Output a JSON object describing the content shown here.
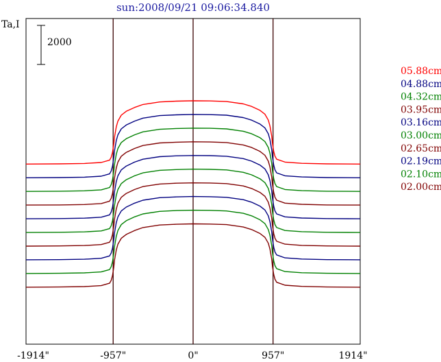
{
  "chart_data": {
    "type": "line",
    "title": "sun:2008/09/21 09:06:34.840",
    "ylabel": "Ta,I",
    "scale_bar_label": "2000",
    "scale_bar_value": 2000,
    "xlim": [
      -2000,
      2000
    ],
    "x_ticks": [
      {
        "value": -1914,
        "label": "-1914\""
      },
      {
        "value": -957,
        "label": "-957\""
      },
      {
        "value": 0,
        "label": "0\""
      },
      {
        "value": 957,
        "label": "957\""
      },
      {
        "value": 1914,
        "label": "1914\""
      }
    ],
    "vertical_lines": [
      -957,
      0,
      957
    ],
    "profile_x": [
      -2000,
      -1600,
      -1300,
      -1100,
      -1000,
      -980,
      -965,
      -950,
      -940,
      -920,
      -900,
      -860,
      -800,
      -700,
      -600,
      -400,
      -200,
      0,
      200,
      400,
      600,
      700,
      800,
      860,
      900,
      920,
      940,
      950,
      965,
      980,
      1000,
      1100,
      1300,
      1600,
      2000
    ],
    "series": [
      {
        "name": "05.88cm",
        "color": "#ff0000",
        "values": [
          2200,
          2210,
          2230,
          2280,
          2400,
          2550,
          2800,
          3200,
          3600,
          4100,
          4400,
          4700,
          4900,
          5100,
          5250,
          5380,
          5420,
          5440,
          5430,
          5400,
          5280,
          5150,
          4950,
          4750,
          4450,
          4150,
          3650,
          3250,
          2850,
          2600,
          2450,
          2300,
          2240,
          2210,
          2200
        ]
      },
      {
        "name": "04.88cm",
        "color": "#000080",
        "values": [
          1500,
          1510,
          1530,
          1580,
          1700,
          1850,
          2100,
          2500,
          2900,
          3400,
          3700,
          4000,
          4200,
          4400,
          4550,
          4680,
          4720,
          4740,
          4730,
          4700,
          4580,
          4450,
          4250,
          4050,
          3750,
          3450,
          2950,
          2550,
          2150,
          1900,
          1750,
          1600,
          1540,
          1510,
          1500
        ]
      },
      {
        "name": "04.32cm",
        "color": "#008000",
        "values": [
          800,
          810,
          830,
          880,
          1000,
          1150,
          1400,
          1800,
          2200,
          2700,
          3000,
          3300,
          3500,
          3700,
          3850,
          3980,
          4020,
          4040,
          4030,
          4000,
          3880,
          3750,
          3550,
          3350,
          3050,
          2750,
          2250,
          1850,
          1450,
          1200,
          1050,
          900,
          840,
          810,
          800
        ]
      },
      {
        "name": "03.95cm",
        "color": "#800000",
        "values": [
          100,
          110,
          130,
          180,
          300,
          450,
          700,
          1100,
          1500,
          2000,
          2300,
          2600,
          2800,
          3000,
          3150,
          3280,
          3320,
          3340,
          3330,
          3300,
          3180,
          3050,
          2850,
          2650,
          2350,
          2050,
          1550,
          1150,
          750,
          500,
          350,
          200,
          140,
          110,
          100
        ]
      },
      {
        "name": "03.16cm",
        "color": "#000080",
        "values": [
          -600,
          -590,
          -570,
          -520,
          -400,
          -250,
          0,
          400,
          800,
          1300,
          1600,
          1900,
          2100,
          2300,
          2450,
          2580,
          2620,
          2640,
          2630,
          2600,
          2480,
          2350,
          2150,
          1950,
          1650,
          1350,
          850,
          450,
          50,
          -200,
          -350,
          -500,
          -560,
          -590,
          -600
        ]
      },
      {
        "name": "03.00cm",
        "color": "#008000",
        "values": [
          -1300,
          -1290,
          -1270,
          -1220,
          -1100,
          -950,
          -700,
          -300,
          100,
          600,
          900,
          1200,
          1400,
          1600,
          1750,
          1880,
          1920,
          1940,
          1930,
          1900,
          1780,
          1650,
          1450,
          1250,
          950,
          650,
          150,
          -250,
          -650,
          -900,
          -1050,
          -1200,
          -1260,
          -1290,
          -1300
        ]
      },
      {
        "name": "02.65cm",
        "color": "#800000",
        "values": [
          -2000,
          -1990,
          -1970,
          -1920,
          -1800,
          -1650,
          -1400,
          -1000,
          -600,
          -100,
          200,
          500,
          700,
          900,
          1050,
          1180,
          1220,
          1240,
          1230,
          1200,
          1080,
          950,
          750,
          550,
          250,
          -50,
          -550,
          -950,
          -1350,
          -1600,
          -1750,
          -1900,
          -1960,
          -1990,
          -2000
        ]
      },
      {
        "name": "02.19cm",
        "color": "#000080",
        "values": [
          -2700,
          -2690,
          -2670,
          -2620,
          -2500,
          -2350,
          -2100,
          -1700,
          -1300,
          -800,
          -500,
          -200,
          0,
          200,
          350,
          480,
          520,
          540,
          530,
          500,
          380,
          250,
          50,
          -150,
          -450,
          -750,
          -1250,
          -1650,
          -2050,
          -2300,
          -2450,
          -2600,
          -2660,
          -2690,
          -2700
        ]
      },
      {
        "name": "02.10cm",
        "color": "#008000",
        "values": [
          -3400,
          -3390,
          -3370,
          -3320,
          -3200,
          -3050,
          -2800,
          -2400,
          -2000,
          -1500,
          -1200,
          -900,
          -700,
          -500,
          -350,
          -220,
          -180,
          -160,
          -170,
          -200,
          -320,
          -450,
          -650,
          -850,
          -1150,
          -1450,
          -1950,
          -2350,
          -2750,
          -3000,
          -3150,
          -3300,
          -3360,
          -3390,
          -3400
        ]
      },
      {
        "name": "02.00cm",
        "color": "#800000",
        "values": [
          -4100,
          -4090,
          -4070,
          -4020,
          -3900,
          -3750,
          -3500,
          -3100,
          -2700,
          -2200,
          -1900,
          -1600,
          -1400,
          -1200,
          -1050,
          -920,
          -880,
          -860,
          -870,
          -900,
          -1020,
          -1150,
          -1350,
          -1550,
          -1850,
          -2150,
          -2650,
          -3050,
          -3450,
          -3700,
          -3850,
          -4000,
          -4060,
          -4090,
          -4100
        ]
      }
    ]
  }
}
